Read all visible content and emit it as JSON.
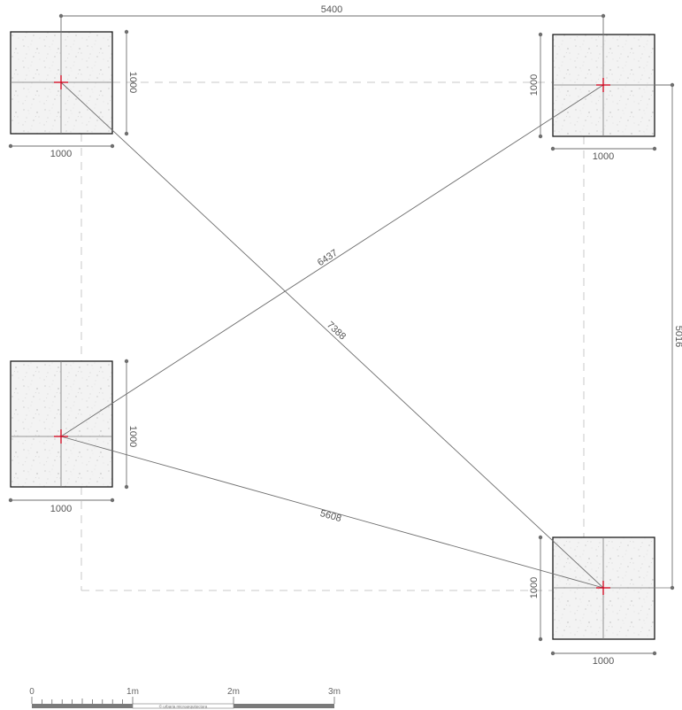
{
  "plan": {
    "footings": [
      {
        "id": "top-left",
        "width_label": "1000",
        "depth_label": "1000"
      },
      {
        "id": "top-right",
        "width_label": "1000",
        "depth_label": "1000"
      },
      {
        "id": "mid-left",
        "width_label": "1000",
        "depth_label": "1000"
      },
      {
        "id": "bottom-right",
        "width_label": "1000",
        "depth_label": "1000"
      }
    ],
    "dimensions": {
      "top_span": "5400",
      "right_span": "5016",
      "diagonal_long": "7388",
      "diagonal_upper": "6437",
      "diagonal_lower": "5608"
    }
  },
  "scale_bar": {
    "labels": [
      "0",
      "1m",
      "2m",
      "3m"
    ],
    "credit": "© urbaria microarquitectura"
  },
  "colors": {
    "line": "#6f6f6f",
    "hidden_line": "#c8c8c8",
    "center_mark": "#d0021b",
    "footing_fill": "#f2f2f2"
  }
}
